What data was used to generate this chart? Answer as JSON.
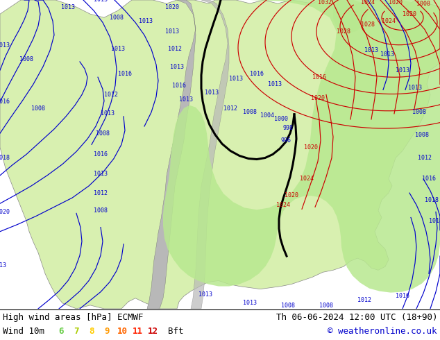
{
  "title_left": "High wind areas [hPa] ECMWF",
  "title_right": "Th 06-06-2024 12:00 UTC (18+90)",
  "subtitle_left": "Wind 10m",
  "subtitle_right": "© weatheronline.co.uk",
  "legend_numbers": [
    "6",
    "7",
    "8",
    "9",
    "10",
    "11",
    "12"
  ],
  "legend_colors": [
    "#66cc44",
    "#aacc00",
    "#ffcc00",
    "#ff9900",
    "#ff6600",
    "#ff2200",
    "#cc0000"
  ],
  "legend_bft": "Bft",
  "bg_color": "#ffffff",
  "ocean_color": "#cce8f5",
  "land_color": "#d8f0b0",
  "gray_color": "#b8b8b8",
  "green_area_color": "#90d060",
  "bottom_sep_color": "#000000",
  "text_color": "#000000",
  "blue_text_color": "#0000cc",
  "red_contour_color": "#cc0000",
  "blue_contour_color": "#0000cc",
  "black_contour_color": "#000000",
  "font_size_bottom": 9,
  "font_size_map_label": 6
}
